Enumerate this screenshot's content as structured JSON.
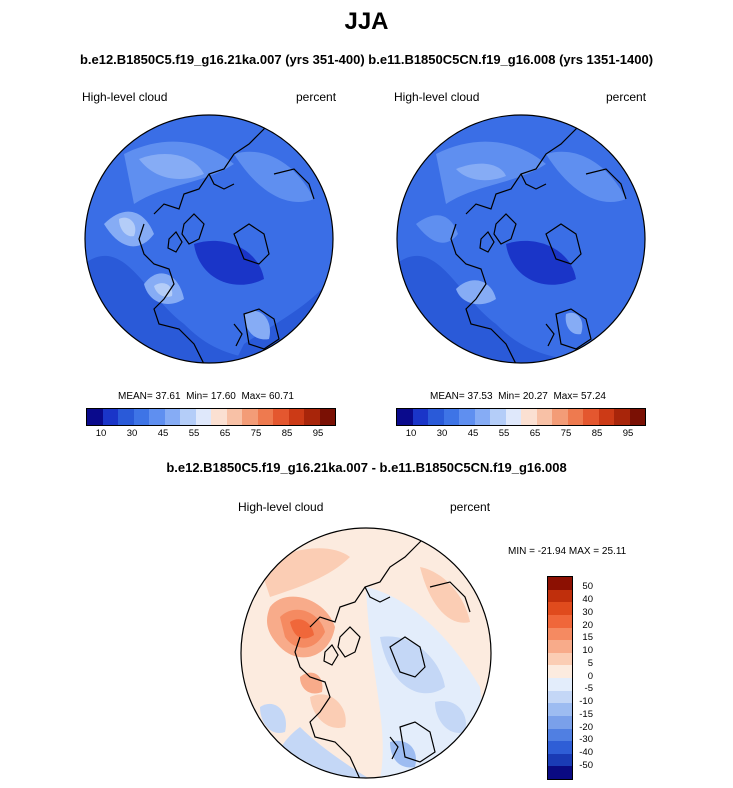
{
  "title": "JJA",
  "subtitle": "b.e12.B1850C5.f19_g16.21ka.007 (yrs 351-400) b.e11.B1850C5CN.f19_g16.008 (yrs 1351-1400)",
  "panels": [
    {
      "variable": "High-level cloud",
      "units": "percent",
      "stats": {
        "mean_label": "MEAN=",
        "mean": "37.61",
        "min_label": "Min=",
        "min": "17.60",
        "max_label": "Max=",
        "max": "60.71"
      }
    },
    {
      "variable": "High-level cloud",
      "units": "percent",
      "stats": {
        "mean_label": "MEAN=",
        "mean": "37.53",
        "min_label": "Min=",
        "min": "20.27",
        "max_label": "Max=",
        "max": "57.24"
      }
    }
  ],
  "diff_panel": {
    "title": "b.e12.B1850C5.f19_g16.21ka.007 - b.e11.B1850C5CN.f19_g16.008",
    "variable": "High-level cloud",
    "units": "percent",
    "minmax": "MIN = -21.94 MAX =  25.11"
  },
  "colorbar_top": {
    "labels": [
      "10",
      "30",
      "45",
      "55",
      "65",
      "75",
      "85",
      "95"
    ],
    "colors": [
      "#0a0a8c",
      "#1a35c8",
      "#2a5ad8",
      "#3e74e6",
      "#5f8ff0",
      "#86acf5",
      "#b4cdf8",
      "#dfe8fb",
      "#fbe0d2",
      "#f8c1a6",
      "#f39c77",
      "#ee7a4f",
      "#e4572f",
      "#cc3a16",
      "#a8250a",
      "#7a1004"
    ]
  },
  "colorbar_diff": {
    "labels": [
      "50",
      "40",
      "30",
      "20",
      "15",
      "10",
      "5",
      "0",
      "-5",
      "-10",
      "-15",
      "-20",
      "-30",
      "-40",
      "-50"
    ],
    "colors": [
      "#8c1002",
      "#c02f0c",
      "#e04b1d",
      "#f0673a",
      "#f58a61",
      "#f8ab8a",
      "#fbcdb4",
      "#fcebdf",
      "#e3edfb",
      "#c4d7f6",
      "#9dbcf1",
      "#7aa0ea",
      "#507fe2",
      "#2f5ed6",
      "#1a3bb5",
      "#0a0a82"
    ]
  }
}
